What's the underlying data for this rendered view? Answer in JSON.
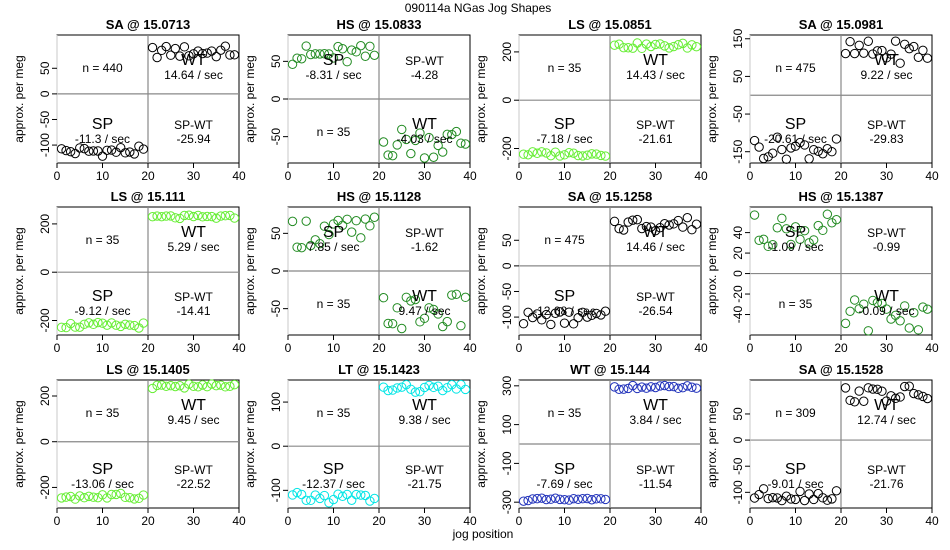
{
  "figure": {
    "suptitle": "090114a   NGas Jog Shapes",
    "xlabel": "jog position",
    "ylabel": "approx. per meg"
  },
  "chart_data": [
    {
      "type": "scatter",
      "title": "SA @ 15.0713",
      "color": "#000000",
      "xlim": [
        0,
        40
      ],
      "ylim": [
        -135,
        115
      ],
      "yticks": [
        -100,
        -50,
        0,
        50
      ],
      "xticks": [
        0,
        10,
        20,
        30,
        40
      ],
      "n_label": "n = 440",
      "wt_label": "WT",
      "wt_rate": "14.64 / sec",
      "sp_label": "SP",
      "sp_rate": "-11.3 / sec",
      "spwt_label": "SP-WT",
      "spwt_value": "-25.94",
      "sp_base": -112,
      "wt_base": 82,
      "sp_spread": 10,
      "wt_spread": 12
    },
    {
      "type": "scatter",
      "title": "HS @ 15.0833",
      "color": "#228b22",
      "xlim": [
        0,
        40
      ],
      "ylim": [
        -85,
        85
      ],
      "yticks": [
        -50,
        0,
        50
      ],
      "xticks": [
        0,
        10,
        20,
        30,
        40
      ],
      "n_label": "n = 35",
      "wt_label": "WT",
      "wt_rate": "-4.03 / sec",
      "sp_label": "SP",
      "sp_rate": "-8.31 / sec",
      "spwt_label": "SP-WT",
      "spwt_value": "-4.28",
      "sp_base": 58,
      "wt_base": -57,
      "sp_spread": 14,
      "wt_spread": 22
    },
    {
      "type": "scatter",
      "title": "LS @ 15.0851",
      "color": "#66ee33",
      "xlim": [
        0,
        40
      ],
      "ylim": [
        -260,
        270
      ],
      "yticks": [
        -200,
        0,
        200
      ],
      "xticks": [
        0,
        10,
        20,
        30,
        40
      ],
      "n_label": "n = 35",
      "wt_label": "WT",
      "wt_rate": "14.43 / sec",
      "sp_label": "SP",
      "sp_rate": "-7.18 / sec",
      "spwt_label": "SP-WT",
      "spwt_value": "-21.61",
      "sp_base": -222,
      "wt_base": 225,
      "sp_spread": 10,
      "wt_spread": 12
    },
    {
      "type": "scatter",
      "title": "SA @ 15.0981",
      "color": "#000000",
      "xlim": [
        0,
        40
      ],
      "ylim": [
        -180,
        160
      ],
      "yticks": [
        -150,
        -50,
        50,
        150
      ],
      "xticks": [
        0,
        10,
        20,
        30,
        40
      ],
      "n_label": "n = 475",
      "wt_label": "WT",
      "wt_rate": "9.22 / sec",
      "sp_label": "SP",
      "sp_rate": "-20.61 / sec",
      "spwt_label": "SP-WT",
      "spwt_value": "-29.83",
      "sp_base": -140,
      "wt_base": 115,
      "sp_spread": 30,
      "wt_spread": 30
    },
    {
      "type": "scatter",
      "title": "LS @ 15.111",
      "color": "#66ee33",
      "xlim": [
        0,
        40
      ],
      "ylim": [
        -260,
        270
      ],
      "yticks": [
        -200,
        0,
        200
      ],
      "xticks": [
        0,
        10,
        20,
        30,
        40
      ],
      "n_label": "n = 35",
      "wt_label": "WT",
      "wt_rate": "5.29 / sec",
      "sp_label": "SP",
      "sp_rate": "-9.12 / sec",
      "spwt_label": "SP-WT",
      "spwt_value": "-14.41",
      "sp_base": -220,
      "wt_base": 228,
      "sp_spread": 12,
      "wt_spread": 8
    },
    {
      "type": "scatter",
      "title": "HS @ 15.1128",
      "color": "#228b22",
      "xlim": [
        0,
        40
      ],
      "ylim": [
        -85,
        85
      ],
      "yticks": [
        -50,
        0,
        50
      ],
      "xticks": [
        0,
        10,
        20,
        30,
        40
      ],
      "n_label": "n = 35",
      "wt_label": "WT",
      "wt_rate": "9.47 / sec",
      "sp_label": "SP",
      "sp_rate": "7.85 / sec",
      "spwt_label": "SP-WT",
      "spwt_value": "-1.62",
      "sp_base": 52,
      "wt_base": -55,
      "sp_spread": 22,
      "wt_spread": 25
    },
    {
      "type": "scatter",
      "title": "SA @ 15.1258",
      "color": "#000000",
      "xlim": [
        0,
        40
      ],
      "ylim": [
        -135,
        115
      ],
      "yticks": [
        -100,
        -50,
        0,
        50
      ],
      "xticks": [
        0,
        10,
        20,
        30,
        40
      ],
      "n_label": "n = 475",
      "wt_label": "WT",
      "wt_rate": "14.46 / sec",
      "sp_label": "SP",
      "sp_rate": "-12.08 / sec",
      "spwt_label": "SP-WT",
      "spwt_value": "-26.54",
      "sp_base": -102,
      "wt_base": 82,
      "sp_spread": 14,
      "wt_spread": 14
    },
    {
      "type": "scatter",
      "title": "HS @ 15.1387",
      "color": "#228b22",
      "xlim": [
        0,
        40
      ],
      "ylim": [
        -60,
        65
      ],
      "yticks": [
        -40,
        -20,
        0,
        20,
        40
      ],
      "xticks": [
        0,
        10,
        20,
        30,
        40
      ],
      "n_label": "n = 35",
      "wt_label": "WT",
      "wt_rate": "-0.09 / sec",
      "sp_label": "SP",
      "sp_rate": "-1.09 / sec",
      "spwt_label": "SP-WT",
      "spwt_value": "-0.99",
      "sp_base": 42,
      "wt_base": -40,
      "sp_spread": 16,
      "wt_spread": 16
    },
    {
      "type": "scatter",
      "title": "LS @ 15.1405",
      "color": "#66ee33",
      "xlim": [
        0,
        40
      ],
      "ylim": [
        -290,
        270
      ],
      "yticks": [
        -200,
        0,
        200
      ],
      "xticks": [
        0,
        10,
        20,
        30,
        40
      ],
      "n_label": "n = 35",
      "wt_label": "WT",
      "wt_rate": "9.45 / sec",
      "sp_label": "SP",
      "sp_rate": "-13.06 / sec",
      "spwt_label": "SP-WT",
      "spwt_value": "-22.52",
      "sp_base": -240,
      "wt_base": 243,
      "sp_spread": 14,
      "wt_spread": 10
    },
    {
      "type": "scatter",
      "title": "LT @ 15.1423",
      "color": "#00e5e5",
      "xlim": [
        0,
        40
      ],
      "ylim": [
        -140,
        150
      ],
      "yticks": [
        -100,
        0,
        100
      ],
      "xticks": [
        0,
        10,
        20,
        30,
        40
      ],
      "n_label": "n = 35",
      "wt_label": "WT",
      "wt_rate": "9.38 / sec",
      "sp_label": "SP",
      "sp_rate": "-12.37 / sec",
      "spwt_label": "SP-WT",
      "spwt_value": "-21.75",
      "sp_base": -117,
      "wt_base": 130,
      "sp_spread": 12,
      "wt_spread": 10
    },
    {
      "type": "scatter",
      "title": "WT @ 15.144",
      "color": "#2233bb",
      "xlim": [
        0,
        40
      ],
      "ylim": [
        -330,
        330
      ],
      "yticks": [
        -300,
        -100,
        100,
        300
      ],
      "xticks": [
        0,
        10,
        20,
        30,
        40
      ],
      "n_label": "n = 35",
      "wt_label": "WT",
      "wt_rate": "3.84 / sec",
      "sp_label": "SP",
      "sp_rate": "-7.69 / sec",
      "spwt_label": "SP-WT",
      "spwt_value": "-11.54",
      "sp_base": -287,
      "wt_base": 292,
      "sp_spread": 8,
      "wt_spread": 10
    },
    {
      "type": "scatter",
      "title": "SA @ 15.1528",
      "color": "#000000",
      "xlim": [
        0,
        40
      ],
      "ylim": [
        -130,
        115
      ],
      "yticks": [
        -100,
        -50,
        0,
        50
      ],
      "xticks": [
        0,
        10,
        20,
        30,
        40
      ],
      "n_label": "n = 309",
      "wt_label": "WT",
      "wt_rate": "12.74 / sec",
      "sp_label": "SP",
      "sp_rate": "-9.01 / sec",
      "spwt_label": "SP-WT",
      "spwt_value": "-21.76",
      "sp_base": -105,
      "wt_base": 88,
      "sp_spread": 12,
      "wt_spread": 16
    }
  ]
}
